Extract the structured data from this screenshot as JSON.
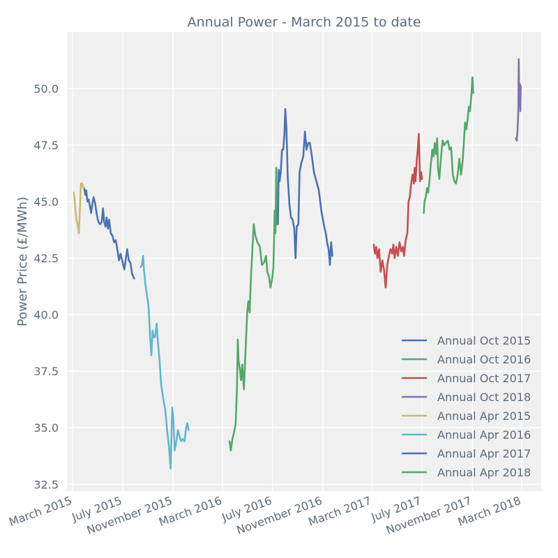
{
  "chart_data": {
    "type": "line",
    "title": "Annual Power - March 2015 to date",
    "xlabel": "",
    "ylabel": "Power Price (£/MWh)",
    "ylim": [
      32.2,
      52.5
    ],
    "xlim": [
      "2015-02-15",
      "2018-04-18"
    ],
    "grid": true,
    "legend_position": "lower-right",
    "background": "#f0f0f0",
    "y_ticks": [
      32.5,
      35.0,
      37.5,
      40.0,
      42.5,
      45.0,
      47.5,
      50.0
    ],
    "x_ticks": [
      {
        "date": "2015-03-01",
        "label": "March 2015"
      },
      {
        "date": "2015-07-01",
        "label": "July 2015"
      },
      {
        "date": "2015-11-01",
        "label": "November 2015"
      },
      {
        "date": "2016-03-01",
        "label": "March 2016"
      },
      {
        "date": "2016-07-01",
        "label": "July 2016"
      },
      {
        "date": "2016-11-01",
        "label": "November 2016"
      },
      {
        "date": "2017-03-01",
        "label": "March 2017"
      },
      {
        "date": "2017-07-01",
        "label": "July 2017"
      },
      {
        "date": "2017-11-01",
        "label": "November 2017"
      },
      {
        "date": "2018-03-01",
        "label": "March 2018"
      }
    ],
    "series": [
      {
        "name": "Annual Oct 2015",
        "color": "#4c72b0",
        "points": [
          [
            "2015-03-29",
            45.6
          ],
          [
            "2015-04-01",
            45.3
          ],
          [
            "2015-04-03",
            45.5
          ],
          [
            "2015-04-06",
            45.0
          ],
          [
            "2015-04-09",
            45.1
          ],
          [
            "2015-04-12",
            44.8
          ],
          [
            "2015-04-15",
            44.5
          ],
          [
            "2015-04-18",
            44.9
          ],
          [
            "2015-04-21",
            45.2
          ],
          [
            "2015-04-25",
            44.9
          ],
          [
            "2015-04-29",
            44.4
          ],
          [
            "2015-05-03",
            44.1
          ],
          [
            "2015-05-07",
            44.0
          ],
          [
            "2015-05-11",
            44.1
          ],
          [
            "2015-05-14",
            44.7
          ],
          [
            "2015-05-17",
            44.1
          ],
          [
            "2015-05-20",
            43.9
          ],
          [
            "2015-05-23",
            44.3
          ],
          [
            "2015-05-26",
            43.8
          ],
          [
            "2015-05-29",
            44.2
          ],
          [
            "2015-06-02",
            43.6
          ],
          [
            "2015-06-06",
            43.5
          ],
          [
            "2015-06-10",
            43.2
          ],
          [
            "2015-06-14",
            43.3
          ],
          [
            "2015-06-18",
            42.9
          ],
          [
            "2015-06-22",
            42.4
          ],
          [
            "2015-06-26",
            42.7
          ],
          [
            "2015-07-01",
            42.3
          ],
          [
            "2015-07-05",
            42.0
          ],
          [
            "2015-07-09",
            42.5
          ],
          [
            "2015-07-12",
            42.9
          ],
          [
            "2015-07-16",
            42.4
          ],
          [
            "2015-07-20",
            42.3
          ],
          [
            "2015-07-24",
            41.8
          ],
          [
            "2015-07-29",
            41.6
          ]
        ]
      },
      {
        "name": "Annual Oct 2016",
        "color": "#55a868",
        "points": [
          [
            "2016-03-18",
            34.4
          ],
          [
            "2016-03-21",
            34.0
          ],
          [
            "2016-03-25",
            34.5
          ],
          [
            "2016-03-29",
            34.8
          ],
          [
            "2016-04-02",
            35.2
          ],
          [
            "2016-04-05",
            36.7
          ],
          [
            "2016-04-07",
            38.9
          ],
          [
            "2016-04-09",
            38.0
          ],
          [
            "2016-04-12",
            37.6
          ],
          [
            "2016-04-15",
            37.1
          ],
          [
            "2016-04-18",
            37.8
          ],
          [
            "2016-04-22",
            36.7
          ],
          [
            "2016-04-26",
            38.4
          ],
          [
            "2016-04-30",
            40.1
          ],
          [
            "2016-05-03",
            40.6
          ],
          [
            "2016-05-06",
            40.1
          ],
          [
            "2016-05-09",
            41.6
          ],
          [
            "2016-05-12",
            42.6
          ],
          [
            "2016-05-16",
            44.0
          ],
          [
            "2016-05-20",
            43.5
          ],
          [
            "2016-05-25",
            43.2
          ],
          [
            "2016-05-31",
            43.0
          ],
          [
            "2016-06-05",
            42.2
          ],
          [
            "2016-06-10",
            42.3
          ],
          [
            "2016-06-15",
            42.6
          ],
          [
            "2016-06-18",
            41.9
          ],
          [
            "2016-06-22",
            41.7
          ],
          [
            "2016-06-26",
            41.2
          ],
          [
            "2016-06-30",
            41.6
          ],
          [
            "2016-07-03",
            42.1
          ],
          [
            "2016-07-06",
            44.6
          ],
          [
            "2016-07-08",
            43.6
          ],
          [
            "2016-07-10",
            46.5
          ],
          [
            "2016-07-12",
            44.0
          ]
        ]
      },
      {
        "name": "Annual Oct 2017",
        "color": "#c44e52",
        "points": [
          [
            "2017-03-05",
            43.1
          ],
          [
            "2017-03-08",
            42.7
          ],
          [
            "2017-03-11",
            43.0
          ],
          [
            "2017-03-14",
            42.5
          ],
          [
            "2017-03-18",
            42.9
          ],
          [
            "2017-03-22",
            41.9
          ],
          [
            "2017-03-26",
            42.4
          ],
          [
            "2017-03-30",
            42.0
          ],
          [
            "2017-04-03",
            41.2
          ],
          [
            "2017-04-07",
            42.2
          ],
          [
            "2017-04-11",
            42.6
          ],
          [
            "2017-04-15",
            42.9
          ],
          [
            "2017-04-19",
            42.7
          ],
          [
            "2017-04-22",
            43.1
          ],
          [
            "2017-04-25",
            42.5
          ],
          [
            "2017-04-29",
            43.0
          ],
          [
            "2017-05-03",
            42.6
          ],
          [
            "2017-05-07",
            43.2
          ],
          [
            "2017-05-11",
            42.8
          ],
          [
            "2017-05-15",
            43.0
          ],
          [
            "2017-05-18",
            42.6
          ],
          [
            "2017-05-22",
            43.3
          ],
          [
            "2017-05-26",
            43.6
          ],
          [
            "2017-05-29",
            45.0
          ],
          [
            "2017-06-01",
            45.2
          ],
          [
            "2017-06-05",
            45.9
          ],
          [
            "2017-06-08",
            46.2
          ],
          [
            "2017-06-11",
            45.8
          ],
          [
            "2017-06-13",
            46.5
          ],
          [
            "2017-06-15",
            45.9
          ],
          [
            "2017-06-18",
            46.8
          ],
          [
            "2017-06-21",
            47.4
          ],
          [
            "2017-06-23",
            48.0
          ],
          [
            "2017-06-26",
            45.9
          ],
          [
            "2017-06-29",
            46.3
          ],
          [
            "2017-07-01",
            46.0
          ]
        ]
      },
      {
        "name": "Annual Oct 2018",
        "color": "#8172b2",
        "points": [
          [
            "2018-02-15",
            47.8
          ],
          [
            "2018-02-17",
            47.7
          ],
          [
            "2018-02-19",
            48.1
          ],
          [
            "2018-02-21",
            49.0
          ],
          [
            "2018-02-22",
            51.3
          ],
          [
            "2018-02-23",
            49.6
          ],
          [
            "2018-02-24",
            49.2
          ],
          [
            "2018-02-25",
            50.2
          ],
          [
            "2018-02-26",
            49.0
          ],
          [
            "2018-02-27",
            50.1
          ]
        ]
      },
      {
        "name": "Annual Apr 2015",
        "color": "#ccb974",
        "points": [
          [
            "2015-03-04",
            45.4
          ],
          [
            "2015-03-07",
            44.8
          ],
          [
            "2015-03-10",
            44.2
          ],
          [
            "2015-03-13",
            44.0
          ],
          [
            "2015-03-16",
            43.6
          ],
          [
            "2015-03-19",
            44.8
          ],
          [
            "2015-03-21",
            45.8
          ],
          [
            "2015-03-24",
            45.8
          ],
          [
            "2015-03-27",
            45.6
          ]
        ]
      },
      {
        "name": "Annual Apr 2016",
        "color": "#64b5cd",
        "points": [
          [
            "2015-08-14",
            42.1
          ],
          [
            "2015-08-17",
            42.2
          ],
          [
            "2015-08-20",
            42.6
          ],
          [
            "2015-08-22",
            42.0
          ],
          [
            "2015-08-25",
            41.4
          ],
          [
            "2015-08-29",
            40.9
          ],
          [
            "2015-09-02",
            40.4
          ],
          [
            "2015-09-06",
            39.0
          ],
          [
            "2015-09-09",
            38.2
          ],
          [
            "2015-09-12",
            39.3
          ],
          [
            "2015-09-15",
            39.0
          ],
          [
            "2015-09-18",
            39.0
          ],
          [
            "2015-09-22",
            39.6
          ],
          [
            "2015-09-25",
            38.8
          ],
          [
            "2015-09-29",
            38.0
          ],
          [
            "2015-10-03",
            36.9
          ],
          [
            "2015-10-08",
            36.3
          ],
          [
            "2015-10-13",
            35.8
          ],
          [
            "2015-10-18",
            34.8
          ],
          [
            "2015-10-22",
            34.2
          ],
          [
            "2015-10-26",
            33.2
          ],
          [
            "2015-10-28",
            34.5
          ],
          [
            "2015-10-30",
            35.9
          ],
          [
            "2015-11-02",
            35.3
          ],
          [
            "2015-11-05",
            34.0
          ],
          [
            "2015-11-09",
            34.4
          ],
          [
            "2015-11-13",
            34.9
          ],
          [
            "2015-11-17",
            34.6
          ],
          [
            "2015-11-21",
            34.4
          ],
          [
            "2015-11-25",
            34.5
          ],
          [
            "2015-11-29",
            34.4
          ],
          [
            "2015-12-03",
            35.0
          ],
          [
            "2015-12-06",
            35.2
          ],
          [
            "2015-12-09",
            34.9
          ]
        ]
      },
      {
        "name": "Annual Apr 2017",
        "color": "#4c72b0",
        "points": [
          [
            "2016-07-14",
            44.0
          ],
          [
            "2016-07-16",
            46.4
          ],
          [
            "2016-07-18",
            45.9
          ],
          [
            "2016-07-21",
            46.3
          ],
          [
            "2016-07-24",
            47.3
          ],
          [
            "2016-07-27",
            47.3
          ],
          [
            "2016-07-30",
            48.0
          ],
          [
            "2016-08-01",
            49.1
          ],
          [
            "2016-08-04",
            48.2
          ],
          [
            "2016-08-07",
            46.1
          ],
          [
            "2016-08-11",
            44.9
          ],
          [
            "2016-08-15",
            44.3
          ],
          [
            "2016-08-19",
            44.2
          ],
          [
            "2016-08-23",
            43.8
          ],
          [
            "2016-08-26",
            42.5
          ],
          [
            "2016-08-29",
            43.9
          ],
          [
            "2016-09-02",
            44.0
          ],
          [
            "2016-09-05",
            46.3
          ],
          [
            "2016-09-09",
            46.7
          ],
          [
            "2016-09-14",
            47.0
          ],
          [
            "2016-09-18",
            48.1
          ],
          [
            "2016-09-22",
            47.3
          ],
          [
            "2016-09-26",
            47.6
          ],
          [
            "2016-09-30",
            47.6
          ],
          [
            "2016-10-05",
            47.0
          ],
          [
            "2016-10-10",
            46.3
          ],
          [
            "2016-10-16",
            45.9
          ],
          [
            "2016-10-22",
            45.5
          ],
          [
            "2016-10-28",
            44.6
          ],
          [
            "2016-11-04",
            43.9
          ],
          [
            "2016-11-08",
            43.6
          ],
          [
            "2016-11-12",
            43.1
          ],
          [
            "2016-11-15",
            42.9
          ],
          [
            "2016-11-18",
            42.2
          ],
          [
            "2016-11-21",
            43.2
          ],
          [
            "2016-11-24",
            42.6
          ]
        ]
      },
      {
        "name": "Annual Apr 2018",
        "color": "#55a868",
        "points": [
          [
            "2017-07-05",
            44.5
          ],
          [
            "2017-07-07",
            45.0
          ],
          [
            "2017-07-10",
            45.2
          ],
          [
            "2017-07-13",
            45.6
          ],
          [
            "2017-07-16",
            45.4
          ],
          [
            "2017-07-19",
            45.9
          ],
          [
            "2017-07-22",
            46.6
          ],
          [
            "2017-07-24",
            46.9
          ],
          [
            "2017-07-26",
            47.3
          ],
          [
            "2017-07-29",
            47.0
          ],
          [
            "2017-08-01",
            47.6
          ],
          [
            "2017-08-04",
            47.1
          ],
          [
            "2017-08-07",
            47.8
          ],
          [
            "2017-08-09",
            46.5
          ],
          [
            "2017-08-12",
            46.0
          ],
          [
            "2017-08-16",
            46.9
          ],
          [
            "2017-08-20",
            47.7
          ],
          [
            "2017-08-24",
            47.5
          ],
          [
            "2017-08-28",
            47.6
          ],
          [
            "2017-09-02",
            47.7
          ],
          [
            "2017-09-06",
            47.3
          ],
          [
            "2017-09-10",
            47.4
          ],
          [
            "2017-09-14",
            46.2
          ],
          [
            "2017-09-18",
            45.9
          ],
          [
            "2017-09-22",
            45.8
          ],
          [
            "2017-09-26",
            46.2
          ],
          [
            "2017-09-30",
            46.9
          ],
          [
            "2017-10-04",
            46.2
          ],
          [
            "2017-10-08",
            46.8
          ],
          [
            "2017-10-11",
            47.6
          ],
          [
            "2017-10-14",
            48.5
          ],
          [
            "2017-10-17",
            48.2
          ],
          [
            "2017-10-20",
            48.6
          ],
          [
            "2017-10-23",
            49.2
          ],
          [
            "2017-10-26",
            49.0
          ],
          [
            "2017-10-29",
            49.6
          ],
          [
            "2017-11-01",
            50.5
          ],
          [
            "2017-11-03",
            49.8
          ]
        ]
      }
    ]
  }
}
